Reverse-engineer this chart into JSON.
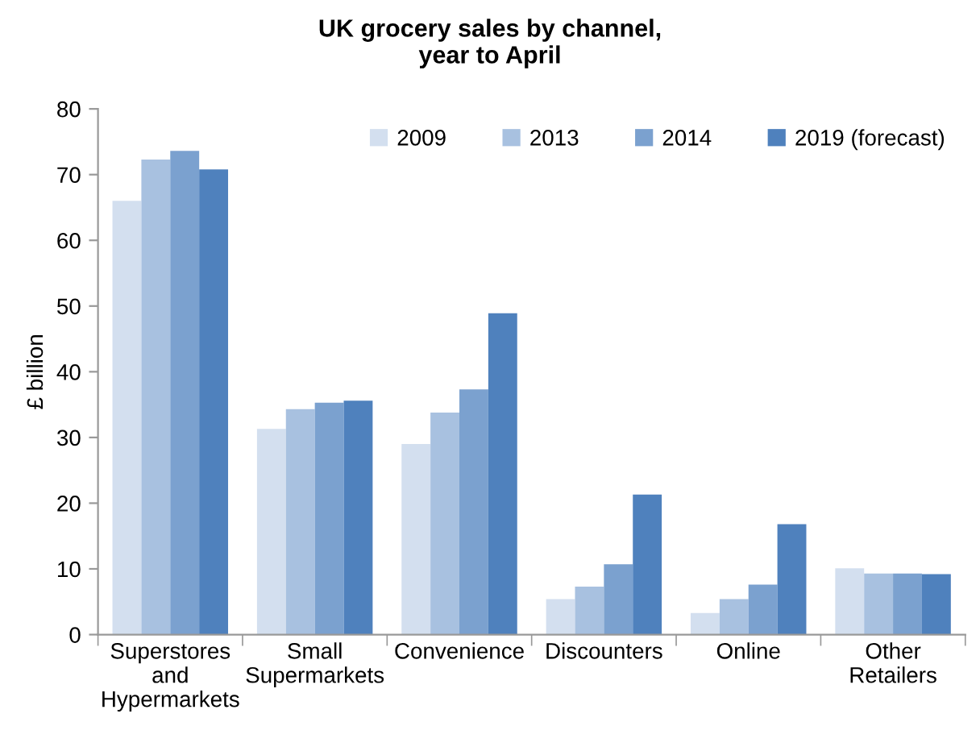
{
  "chart_data": {
    "type": "bar",
    "title": "UK grocery sales by channel,\nyear to April",
    "ylabel": "£ billion",
    "categories": [
      "Superstores\nand\nHypermarkets",
      "Small\nSupermarkets",
      "Convenience",
      "Discounters",
      "Online",
      "Other\nRetailers"
    ],
    "series": [
      {
        "name": "2009",
        "color": "#d3dfef",
        "values": [
          66.0,
          31.3,
          29.0,
          5.4,
          3.3,
          10.1
        ]
      },
      {
        "name": "2013",
        "color": "#a8c1e0",
        "values": [
          72.3,
          34.3,
          33.8,
          7.3,
          5.4,
          9.3
        ]
      },
      {
        "name": "2014",
        "color": "#7ba1cf",
        "values": [
          73.6,
          35.3,
          37.3,
          10.7,
          7.6,
          9.3
        ]
      },
      {
        "name": "2019 (forecast)",
        "color": "#4f81bd",
        "values": [
          70.8,
          35.6,
          48.9,
          21.3,
          16.8,
          9.2
        ]
      }
    ],
    "ylim": [
      0,
      80
    ],
    "yticks": [
      0,
      10,
      20,
      30,
      40,
      50,
      60,
      70,
      80
    ],
    "grid": false,
    "legend": "top right"
  }
}
